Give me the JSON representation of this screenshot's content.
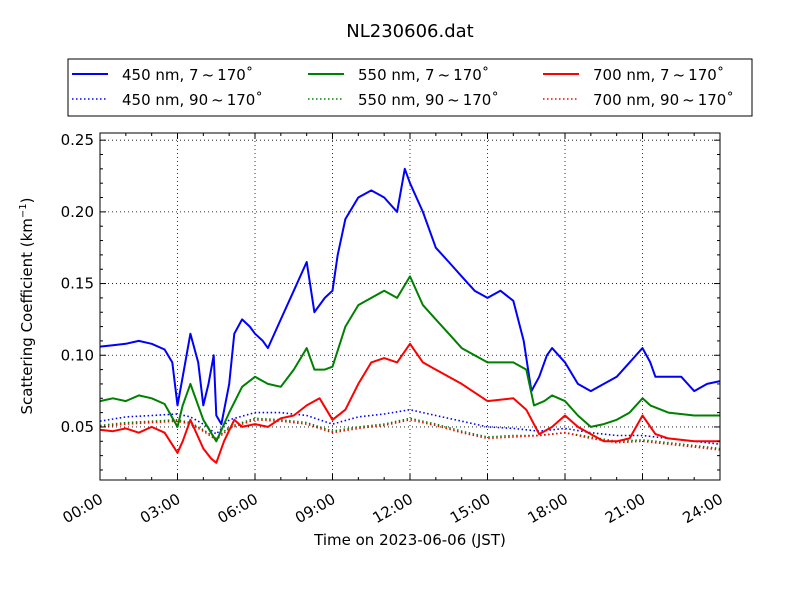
{
  "chart_data": {
    "type": "line",
    "title": "NL230606.dat",
    "xlabel": "Time on 2023-06-06 (JST)",
    "ylabel_main": "Scattering Coefficient (km",
    "ylabel_sup": "−1",
    "ylabel_close": ")",
    "xlim": [
      "2023-06-06 00:00",
      "2023-06-07 00:00"
    ],
    "ylim": [
      0.013,
      0.255
    ],
    "xticks": [
      {
        "hour": 0,
        "label": "00:00"
      },
      {
        "hour": 3,
        "label": "03:00"
      },
      {
        "hour": 6,
        "label": "06:00"
      },
      {
        "hour": 9,
        "label": "09:00"
      },
      {
        "hour": 12,
        "label": "12:00"
      },
      {
        "hour": 15,
        "label": "15:00"
      },
      {
        "hour": 18,
        "label": "18:00"
      },
      {
        "hour": 21,
        "label": "21:00"
      },
      {
        "hour": 24,
        "label": "24:00"
      }
    ],
    "yticks": [
      {
        "value": 0.05,
        "label": "0.05"
      },
      {
        "value": 0.1,
        "label": "0.10"
      },
      {
        "value": 0.15,
        "label": "0.15"
      },
      {
        "value": 0.2,
        "label": "0.20"
      },
      {
        "value": 0.25,
        "label": "0.25"
      }
    ],
    "grid": true,
    "legend_position": "top",
    "legend_columns": 3,
    "series": [
      {
        "name": "450 nm, 7 ~ 170˚",
        "color": "#0000ff",
        "style": "solid",
        "x": [
          0,
          0.5,
          1,
          1.5,
          2,
          2.5,
          2.8,
          3.0,
          3.2,
          3.5,
          3.8,
          4.0,
          4.2,
          4.4,
          4.5,
          4.7,
          5.0,
          5.2,
          5.5,
          5.8,
          6.0,
          6.3,
          6.5,
          7.0,
          7.5,
          8.0,
          8.3,
          8.7,
          9.0,
          9.2,
          9.5,
          10.0,
          10.5,
          11.0,
          11.5,
          11.8,
          12.0,
          12.5,
          13.0,
          13.5,
          14.0,
          14.5,
          15.0,
          15.5,
          16.0,
          16.4,
          16.7,
          17.0,
          17.3,
          17.5,
          18.0,
          18.5,
          19.0,
          19.5,
          20.0,
          20.5,
          21.0,
          21.3,
          21.5,
          22.0,
          22.5,
          23.0,
          23.5,
          24.0
        ],
        "y": [
          0.106,
          0.107,
          0.108,
          0.11,
          0.108,
          0.104,
          0.095,
          0.065,
          0.085,
          0.115,
          0.095,
          0.065,
          0.08,
          0.1,
          0.058,
          0.052,
          0.08,
          0.115,
          0.125,
          0.12,
          0.115,
          0.11,
          0.105,
          0.125,
          0.145,
          0.165,
          0.13,
          0.14,
          0.145,
          0.17,
          0.195,
          0.21,
          0.215,
          0.21,
          0.2,
          0.23,
          0.22,
          0.2,
          0.175,
          0.165,
          0.155,
          0.145,
          0.14,
          0.145,
          0.138,
          0.11,
          0.075,
          0.085,
          0.1,
          0.105,
          0.095,
          0.08,
          0.075,
          0.08,
          0.085,
          0.095,
          0.105,
          0.095,
          0.085,
          0.085,
          0.085,
          0.075,
          0.08,
          0.082
        ]
      },
      {
        "name": "450 nm, 90 ~ 170˚",
        "color": "#0000ff",
        "style": "dotted",
        "x": [
          0,
          1,
          2,
          3,
          3.5,
          4,
          4.5,
          5,
          6,
          7,
          8,
          9,
          10,
          11,
          12,
          13,
          14,
          15,
          16,
          17,
          18,
          19,
          20,
          21,
          22,
          23,
          24
        ],
        "y": [
          0.054,
          0.057,
          0.058,
          0.059,
          0.057,
          0.052,
          0.045,
          0.055,
          0.06,
          0.06,
          0.058,
          0.052,
          0.057,
          0.059,
          0.062,
          0.058,
          0.054,
          0.05,
          0.049,
          0.047,
          0.049,
          0.046,
          0.044,
          0.044,
          0.042,
          0.04,
          0.038
        ]
      },
      {
        "name": "550 nm, 7 ~ 170˚",
        "color": "#008000",
        "style": "solid",
        "x": [
          0,
          0.5,
          1,
          1.5,
          2,
          2.5,
          3.0,
          3.2,
          3.5,
          4.0,
          4.5,
          5.0,
          5.5,
          6.0,
          6.5,
          7.0,
          7.5,
          8.0,
          8.3,
          8.7,
          9.0,
          9.5,
          10.0,
          10.5,
          11.0,
          11.5,
          12.0,
          12.5,
          13.0,
          13.5,
          14.0,
          15.0,
          16.0,
          16.5,
          16.8,
          17.2,
          17.5,
          18.0,
          18.5,
          19.0,
          19.5,
          20.0,
          20.5,
          21.0,
          21.3,
          22.0,
          23.0,
          24.0
        ],
        "y": [
          0.068,
          0.07,
          0.068,
          0.072,
          0.07,
          0.066,
          0.05,
          0.065,
          0.08,
          0.055,
          0.04,
          0.06,
          0.078,
          0.085,
          0.08,
          0.078,
          0.09,
          0.105,
          0.09,
          0.09,
          0.092,
          0.12,
          0.135,
          0.14,
          0.145,
          0.14,
          0.155,
          0.135,
          0.125,
          0.115,
          0.105,
          0.095,
          0.095,
          0.09,
          0.065,
          0.068,
          0.072,
          0.068,
          0.058,
          0.05,
          0.052,
          0.055,
          0.06,
          0.07,
          0.065,
          0.06,
          0.058,
          0.058
        ]
      },
      {
        "name": "550 nm, 90 ~ 170˚",
        "color": "#008000",
        "style": "dotted",
        "x": [
          0,
          1,
          2,
          3,
          3.5,
          4,
          4.5,
          5,
          6,
          7,
          8,
          9,
          10,
          11,
          12,
          13,
          14,
          15,
          16,
          17,
          18,
          19,
          20,
          21,
          22,
          23,
          24
        ],
        "y": [
          0.051,
          0.053,
          0.054,
          0.055,
          0.053,
          0.048,
          0.042,
          0.05,
          0.056,
          0.055,
          0.053,
          0.047,
          0.05,
          0.052,
          0.056,
          0.052,
          0.047,
          0.043,
          0.044,
          0.044,
          0.046,
          0.043,
          0.04,
          0.041,
          0.039,
          0.037,
          0.035
        ]
      },
      {
        "name": "700 nm, 7 ~ 170˚",
        "color": "#ff0000",
        "style": "solid",
        "x": [
          0,
          0.5,
          1,
          1.5,
          2,
          2.5,
          3.0,
          3.2,
          3.5,
          4.0,
          4.3,
          4.5,
          4.8,
          5.2,
          5.5,
          6.0,
          6.5,
          7.0,
          7.5,
          8.0,
          8.5,
          9.0,
          9.5,
          10.0,
          10.5,
          11.0,
          11.5,
          12.0,
          12.5,
          13.0,
          14.0,
          15.0,
          16.0,
          16.5,
          17.0,
          17.5,
          18.0,
          18.5,
          19.0,
          19.5,
          20.0,
          20.5,
          21.0,
          21.5,
          22.0,
          23.0,
          24.0
        ],
        "y": [
          0.048,
          0.047,
          0.049,
          0.046,
          0.05,
          0.046,
          0.032,
          0.04,
          0.055,
          0.035,
          0.028,
          0.025,
          0.04,
          0.055,
          0.05,
          0.052,
          0.05,
          0.056,
          0.058,
          0.065,
          0.07,
          0.055,
          0.062,
          0.08,
          0.095,
          0.098,
          0.095,
          0.108,
          0.095,
          0.09,
          0.08,
          0.068,
          0.07,
          0.062,
          0.045,
          0.05,
          0.058,
          0.05,
          0.045,
          0.04,
          0.04,
          0.042,
          0.058,
          0.045,
          0.042,
          0.04,
          0.04
        ]
      },
      {
        "name": "700 nm, 90 ~ 170˚",
        "color": "#ff0000",
        "style": "dotted",
        "x": [
          0,
          1,
          2,
          3,
          3.5,
          4,
          4.5,
          5,
          6,
          7,
          8,
          9,
          10,
          11,
          12,
          13,
          14,
          15,
          16,
          17,
          18,
          19,
          20,
          21,
          22,
          23,
          24
        ],
        "y": [
          0.05,
          0.052,
          0.053,
          0.054,
          0.052,
          0.047,
          0.041,
          0.049,
          0.055,
          0.054,
          0.052,
          0.046,
          0.049,
          0.051,
          0.055,
          0.051,
          0.046,
          0.042,
          0.043,
          0.044,
          0.046,
          0.042,
          0.039,
          0.04,
          0.038,
          0.036,
          0.034
        ]
      }
    ]
  }
}
